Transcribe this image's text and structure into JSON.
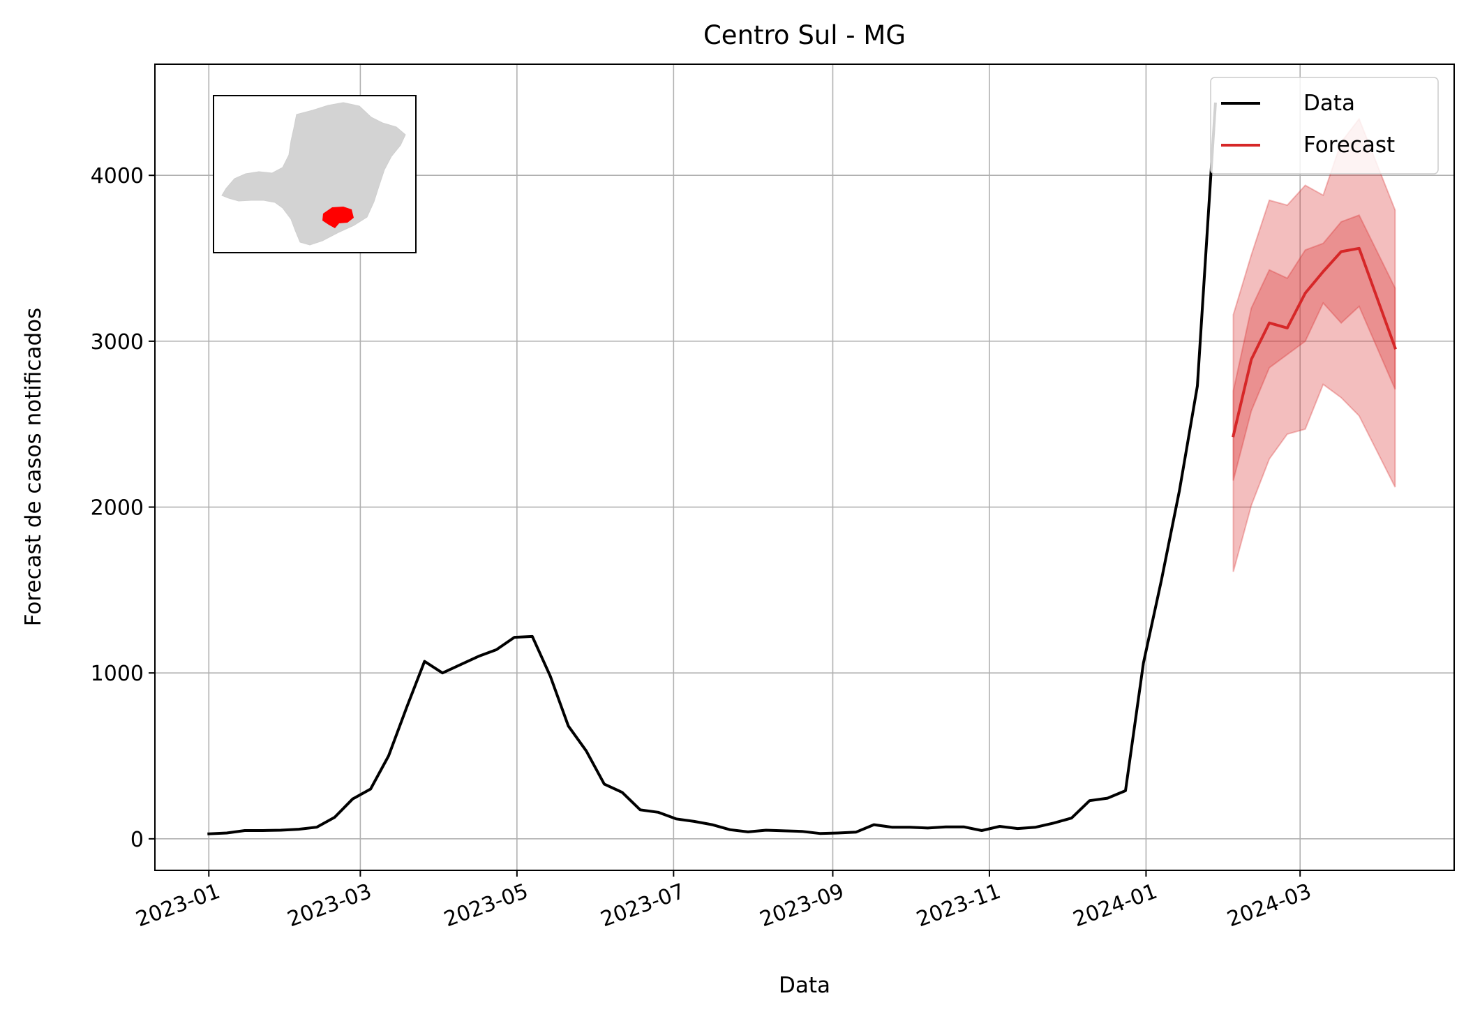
{
  "chart_data": {
    "type": "line",
    "title": "Centro Sul - MG",
    "xlabel": "Data",
    "ylabel": "Forecast de casos notificados",
    "x_axis": "date",
    "xlim": [
      "2022-12-11",
      "2024-04-30"
    ],
    "ylim": [
      -190,
      4670
    ],
    "grid": true,
    "legend": {
      "placement": "top-right",
      "entries": [
        "Data",
        "Forecast"
      ]
    },
    "x_ticks": [
      "2023-01",
      "2023-03",
      "2023-05",
      "2023-07",
      "2023-09",
      "2023-11",
      "2024-01",
      "2024-03"
    ],
    "y_ticks": [
      0,
      1000,
      2000,
      3000,
      4000
    ],
    "colors": {
      "data": "#000000",
      "forecast": "#d62728",
      "band": "#d62728",
      "grid": "#b0b0b0"
    },
    "series": [
      {
        "name": "Data",
        "color": "#000000",
        "points": [
          [
            "2023-01-01",
            30
          ],
          [
            "2023-01-08",
            35
          ],
          [
            "2023-01-15",
            50
          ],
          [
            "2023-01-22",
            50
          ],
          [
            "2023-01-29",
            52
          ],
          [
            "2023-02-05",
            58
          ],
          [
            "2023-02-12",
            70
          ],
          [
            "2023-02-19",
            130
          ],
          [
            "2023-02-26",
            240
          ],
          [
            "2023-03-05",
            300
          ],
          [
            "2023-03-12",
            500
          ],
          [
            "2023-03-19",
            790
          ],
          [
            "2023-03-26",
            1070
          ],
          [
            "2023-04-02",
            1000
          ],
          [
            "2023-04-09",
            1050
          ],
          [
            "2023-04-16",
            1100
          ],
          [
            "2023-04-23",
            1140
          ],
          [
            "2023-04-30",
            1215
          ],
          [
            "2023-05-07",
            1220
          ],
          [
            "2023-05-14",
            980
          ],
          [
            "2023-05-21",
            680
          ],
          [
            "2023-05-28",
            530
          ],
          [
            "2023-06-04",
            330
          ],
          [
            "2023-06-11",
            280
          ],
          [
            "2023-06-18",
            175
          ],
          [
            "2023-06-25",
            160
          ],
          [
            "2023-07-02",
            120
          ],
          [
            "2023-07-09",
            105
          ],
          [
            "2023-07-16",
            85
          ],
          [
            "2023-07-23",
            55
          ],
          [
            "2023-07-30",
            42
          ],
          [
            "2023-08-06",
            52
          ],
          [
            "2023-08-13",
            48
          ],
          [
            "2023-08-20",
            45
          ],
          [
            "2023-08-27",
            32
          ],
          [
            "2023-09-03",
            35
          ],
          [
            "2023-09-10",
            40
          ],
          [
            "2023-09-17",
            85
          ],
          [
            "2023-09-24",
            70
          ],
          [
            "2023-10-01",
            70
          ],
          [
            "2023-10-08",
            65
          ],
          [
            "2023-10-15",
            72
          ],
          [
            "2023-10-22",
            72
          ],
          [
            "2023-10-29",
            50
          ],
          [
            "2023-11-05",
            75
          ],
          [
            "2023-11-12",
            62
          ],
          [
            "2023-11-19",
            70
          ],
          [
            "2023-11-26",
            95
          ],
          [
            "2023-12-03",
            125
          ],
          [
            "2023-12-10",
            230
          ],
          [
            "2023-12-17",
            245
          ],
          [
            "2023-12-24",
            290
          ],
          [
            "2023-12-31",
            1060
          ],
          [
            "2024-01-07",
            1560
          ],
          [
            "2024-01-14",
            2100
          ],
          [
            "2024-01-21",
            2730
          ],
          [
            "2024-01-28",
            4430
          ]
        ]
      },
      {
        "name": "Forecast",
        "color": "#d62728",
        "points": [
          [
            "2024-02-04",
            2430
          ],
          [
            "2024-02-11",
            2890
          ],
          [
            "2024-02-18",
            3110
          ],
          [
            "2024-02-25",
            3080
          ],
          [
            "2024-03-03",
            3290
          ],
          [
            "2024-03-10",
            3420
          ],
          [
            "2024-03-17",
            3540
          ],
          [
            "2024-03-24",
            3560
          ],
          [
            "2024-04-07",
            2960
          ]
        ],
        "bands": [
          {
            "lower": [
              1610,
              2010,
              2290,
              2440,
              2470,
              2740,
              2660,
              2550,
              2120
            ],
            "upper": [
              3160,
              3520,
              3850,
              3820,
              3940,
              3880,
              4200,
              4340,
              3790
            ]
          },
          {
            "lower": [
              2160,
              2580,
              2840,
              2920,
              3000,
              3230,
              3110,
              3210,
              2710
            ],
            "upper": [
              2700,
              3200,
              3430,
              3380,
              3550,
              3590,
              3720,
              3760,
              3320
            ]
          }
        ]
      }
    ]
  }
}
